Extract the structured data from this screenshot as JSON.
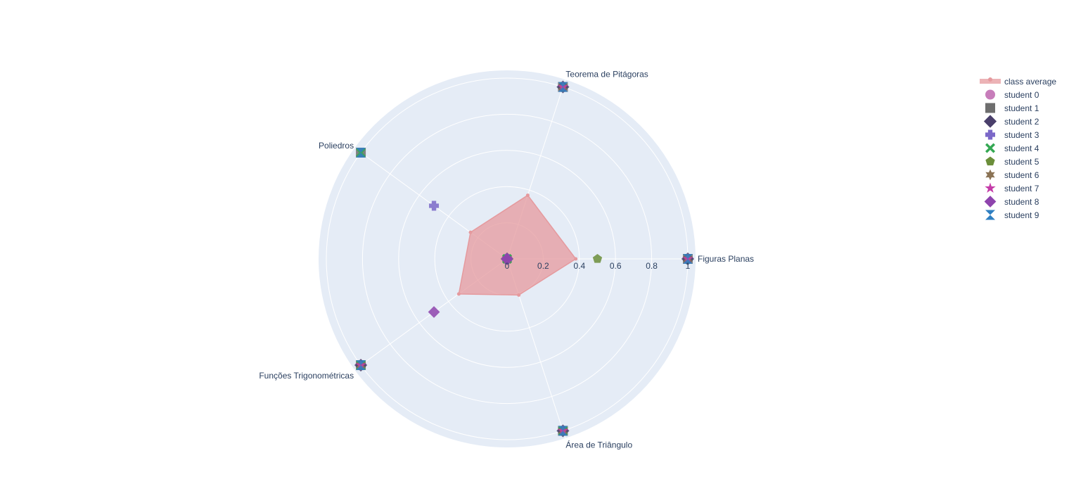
{
  "chart_data": {
    "type": "radar",
    "axes": [
      "Figuras Planas",
      "Teorema de Pitágoras",
      "Poliedros",
      "Funções Trigonométricas",
      "Área de Triângulo"
    ],
    "radial_ticks": [
      "0",
      "0.2",
      "0.4",
      "0.6",
      "0.8",
      "1"
    ],
    "radial_range": [
      0,
      1
    ],
    "series": [
      {
        "name": "class average",
        "values": [
          0.38,
          0.37,
          0.25,
          0.33,
          0.21
        ],
        "color": "#e59a9e",
        "fill": true,
        "symbol": "circle"
      },
      {
        "name": "student 0",
        "values": [
          0,
          0,
          0,
          0,
          0
        ],
        "color": "#c77dba",
        "symbol": "circle"
      },
      {
        "name": "student 1",
        "values": [
          1,
          1,
          1,
          1,
          1
        ],
        "color": "#6e6e6e",
        "symbol": "square"
      },
      {
        "name": "student 2",
        "values": [
          1,
          1,
          0,
          1,
          1
        ],
        "color": "#4a3f6b",
        "symbol": "diamond"
      },
      {
        "name": "student 3",
        "values": [
          0,
          0,
          0.5,
          0,
          0
        ],
        "color": "#7b68c8",
        "symbol": "cross"
      },
      {
        "name": "student 4",
        "values": [
          0,
          0,
          1,
          1,
          1
        ],
        "color": "#34a853",
        "symbol": "x"
      },
      {
        "name": "student 5",
        "values": [
          0.5,
          0,
          0,
          0,
          0
        ],
        "color": "#6b8e3a",
        "symbol": "pentagon"
      },
      {
        "name": "student 6",
        "values": [
          1,
          1,
          0,
          1,
          1
        ],
        "color": "#8b7355",
        "symbol": "hexagram"
      },
      {
        "name": "student 7",
        "values": [
          1,
          1,
          0,
          1,
          1
        ],
        "color": "#c43ba8",
        "symbol": "star"
      },
      {
        "name": "student 8",
        "values": [
          0,
          0,
          0,
          0.5,
          0
        ],
        "color": "#8e44ad",
        "symbol": "diamond-wide"
      },
      {
        "name": "student 9",
        "values": [
          1,
          1,
          1,
          1,
          1
        ],
        "color": "#2f7fc1",
        "symbol": "bowtie"
      }
    ],
    "legend_position": "top-right"
  }
}
